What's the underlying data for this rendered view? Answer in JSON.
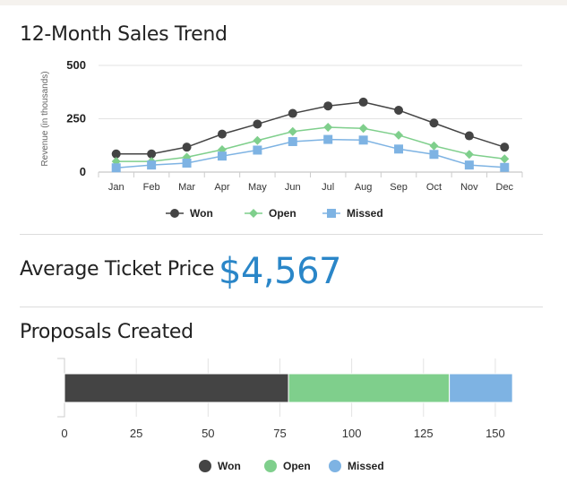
{
  "sales_trend": {
    "title": "12-Month Sales Trend"
  },
  "average_ticket": {
    "label": "Average Ticket Price",
    "value": "$4,567"
  },
  "proposals": {
    "title": "Proposals Created"
  },
  "colors": {
    "won": "#444444",
    "open": "#7fcf8c",
    "missed": "#7eb3e3",
    "accent": "#2a86c8"
  },
  "chart_data": [
    {
      "type": "line",
      "title": "12-Month Sales Trend",
      "ylabel": "Revenue (in thousands)",
      "xlabel": "",
      "categories": [
        "Jan",
        "Feb",
        "Mar",
        "Apr",
        "May",
        "Jun",
        "Jul",
        "Aug",
        "Sep",
        "Oct",
        "Nov",
        "Dec"
      ],
      "ylim": [
        0,
        500
      ],
      "yticks": [
        "0",
        "250",
        "500"
      ],
      "grid": true,
      "legend_position": "bottom",
      "series": [
        {
          "name": "Won",
          "marker": "circle",
          "color": "#444444",
          "values": [
            85,
            85,
            117,
            178,
            225,
            275,
            310,
            328,
            290,
            230,
            170,
            117
          ]
        },
        {
          "name": "Open",
          "marker": "diamond",
          "color": "#7fcf8c",
          "values": [
            50,
            50,
            70,
            105,
            148,
            190,
            210,
            205,
            173,
            123,
            83,
            62
          ]
        },
        {
          "name": "Missed",
          "marker": "square",
          "color": "#7eb3e3",
          "values": [
            20,
            33,
            42,
            75,
            103,
            143,
            153,
            150,
            108,
            83,
            33,
            22
          ]
        }
      ]
    },
    {
      "type": "bar",
      "orientation": "horizontal",
      "stacked": true,
      "title": "Proposals Created",
      "xlabel": "",
      "ylabel": "",
      "xlim": [
        0,
        160
      ],
      "xticks": [
        "0",
        "25",
        "50",
        "75",
        "100",
        "125",
        "150"
      ],
      "legend_position": "bottom",
      "series": [
        {
          "name": "Won",
          "value": 78,
          "color": "#444444"
        },
        {
          "name": "Open",
          "value": 56,
          "color": "#7fcf8c"
        },
        {
          "name": "Missed",
          "value": 22,
          "color": "#7eb3e3"
        }
      ]
    }
  ]
}
